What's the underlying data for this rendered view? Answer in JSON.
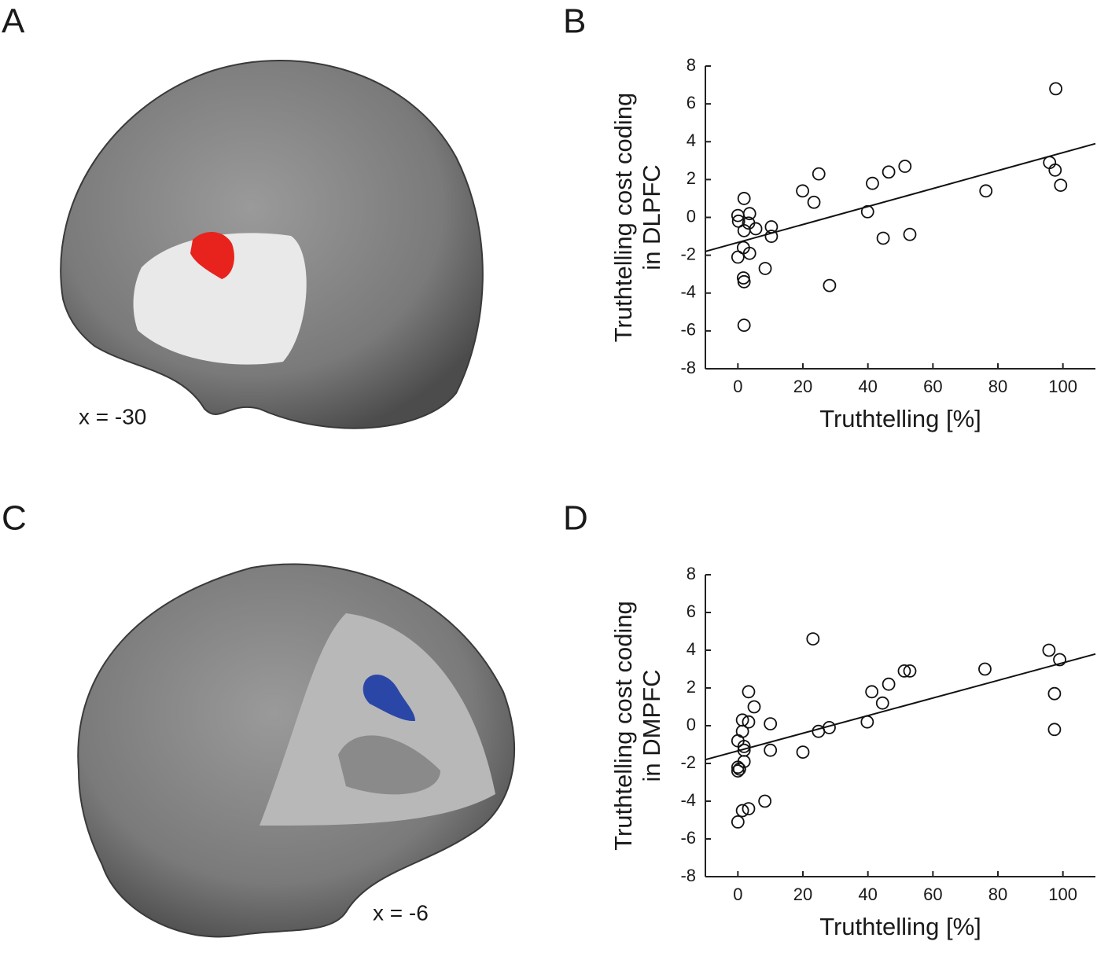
{
  "brain_images": [
    {
      "panel_label": "A",
      "annotation": "x = -30",
      "cluster_color": "#e8231e"
    },
    {
      "panel_label": "C",
      "annotation": "x = -6",
      "cluster_color": "#2a47a8"
    }
  ],
  "chart_data": [
    {
      "type": "scatter",
      "panel_label": "B",
      "xlabel": "Truthtelling [%]",
      "ylabel": [
        "Truthtelling cost coding",
        "in DLPFC"
      ],
      "xlim": [
        -10,
        110
      ],
      "ylim": [
        -8,
        8
      ],
      "xticks": [
        0,
        20,
        40,
        60,
        80,
        100
      ],
      "yticks": [
        -8,
        -6,
        -4,
        -2,
        0,
        2,
        4,
        6,
        8
      ],
      "x": [
        1.9,
        0,
        0.2,
        3.6,
        3.3,
        1.9,
        5.5,
        10.3,
        10.3,
        1.7,
        3.6,
        0,
        1.7,
        1.9,
        8.4,
        1.9,
        19.9,
        23.4,
        24.9,
        28.2,
        39.9,
        41.4,
        44.7,
        46.4,
        51.4,
        52.9,
        76.3,
        95.9,
        97.6,
        99.3,
        97.8
      ],
      "values": [
        1.0,
        0.1,
        -0.2,
        0.2,
        -0.3,
        -0.7,
        -0.6,
        -0.5,
        -1.0,
        -1.6,
        -1.9,
        -2.1,
        -3.2,
        -3.4,
        -2.7,
        -5.7,
        1.4,
        0.8,
        2.3,
        -3.6,
        0.3,
        1.8,
        -1.1,
        2.4,
        2.7,
        -0.9,
        1.4,
        2.9,
        2.5,
        1.7,
        6.8
      ],
      "fit_line": {
        "x": [
          -10,
          110
        ],
        "y": [
          -1.8,
          3.9
        ]
      }
    },
    {
      "type": "scatter",
      "panel_label": "D",
      "xlabel": "Truthtelling [%]",
      "ylabel": [
        "Truthtelling cost coding",
        "in DMPFC"
      ],
      "xlim": [
        -10,
        110
      ],
      "ylim": [
        -8,
        8
      ],
      "xticks": [
        0,
        20,
        40,
        60,
        80,
        100
      ],
      "yticks": [
        -8,
        -6,
        -4,
        -2,
        0,
        2,
        4,
        6,
        8
      ],
      "x": [
        0,
        0,
        0,
        0.5,
        0,
        1.4,
        1.4,
        1.9,
        1.9,
        1.9,
        1.4,
        3.3,
        3.3,
        3.3,
        5,
        10,
        10,
        8.3,
        20,
        23.1,
        24.8,
        28.1,
        39.8,
        41.2,
        44.5,
        46.4,
        51.2,
        52.9,
        76,
        95.7,
        99,
        97.4,
        97.4
      ],
      "values": [
        -0.8,
        -2.2,
        -2.4,
        -2.3,
        -5.1,
        0.3,
        -0.3,
        -1.1,
        -1.3,
        -1.9,
        -4.5,
        -4.4,
        1.8,
        0.2,
        1.0,
        0.1,
        -1.3,
        -4.0,
        -1.4,
        4.6,
        -0.3,
        -0.1,
        0.2,
        1.8,
        1.2,
        2.2,
        2.9,
        2.9,
        3.0,
        4.0,
        3.5,
        1.7,
        -0.2
      ],
      "fit_line": {
        "x": [
          -10,
          110
        ],
        "y": [
          -1.8,
          3.8
        ]
      }
    }
  ]
}
